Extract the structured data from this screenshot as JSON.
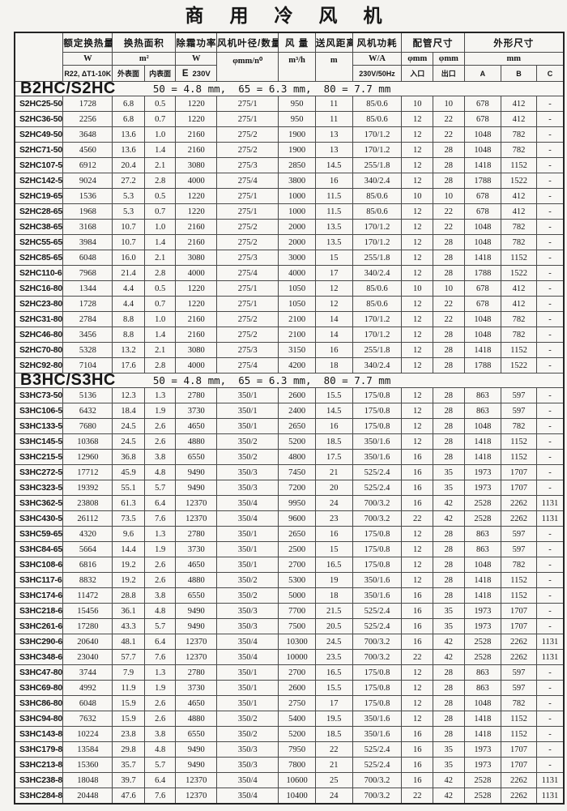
{
  "page_title": "商 用 冷 风 机",
  "table": {
    "groups": {
      "rated": "额定换热量",
      "area": "换热面积",
      "defrost": "除霜功率",
      "fan": "风机叶径/数量",
      "airflow": "风 量",
      "distance": "送风距离",
      "power": "风机功耗",
      "piping": "配管尺寸",
      "dimensions": "外形尺寸"
    },
    "units": {
      "rated": "W",
      "area": "m²",
      "defrost": "W",
      "fan": "φmm/n⁰",
      "airflow": "m³/h",
      "distance": "m",
      "power": "W/A",
      "inlet": "φmm",
      "outlet": "φmm",
      "dims": "mm"
    },
    "subheads": {
      "rated": "R22, ΔT1-10K",
      "outer": "外表面",
      "inner": "内表面",
      "defrost_e": "E",
      "defrost_v": "230V",
      "power": "230V/50Hz",
      "inlet": "入口",
      "outlet": "出口",
      "dim_a": "A",
      "dim_b": "B",
      "dim_c": "C"
    },
    "sections": [
      {
        "name": "B2HC/S2HC",
        "spec": "50 = 4.8 mm,  65 = 6.3 mm,  80 = 7.7 mm",
        "rows": [
          [
            "S2HC25-50",
            "1728",
            "6.8",
            "0.5",
            "1220",
            "275/1",
            "950",
            "11",
            "85/0.6",
            "10",
            "10",
            "678",
            "412",
            "-"
          ],
          [
            "S2HC36-50",
            "2256",
            "6.8",
            "0.7",
            "1220",
            "275/1",
            "950",
            "11",
            "85/0.6",
            "12",
            "22",
            "678",
            "412",
            "-"
          ],
          [
            "S2HC49-50",
            "3648",
            "13.6",
            "1.0",
            "2160",
            "275/2",
            "1900",
            "13",
            "170/1.2",
            "12",
            "22",
            "1048",
            "782",
            "-"
          ],
          [
            "S2HC71-50",
            "4560",
            "13.6",
            "1.4",
            "2160",
            "275/2",
            "1900",
            "13",
            "170/1.2",
            "12",
            "28",
            "1048",
            "782",
            "-"
          ],
          [
            "S2HC107-50",
            "6912",
            "20.4",
            "2.1",
            "3080",
            "275/3",
            "2850",
            "14.5",
            "255/1.8",
            "12",
            "28",
            "1418",
            "1152",
            "-"
          ],
          [
            "S2HC142-50",
            "9024",
            "27.2",
            "2.8",
            "4000",
            "275/4",
            "3800",
            "16",
            "340/2.4",
            "12",
            "28",
            "1788",
            "1522",
            "-"
          ],
          [
            "S2HC19-65",
            "1536",
            "5.3",
            "0.5",
            "1220",
            "275/1",
            "1000",
            "11.5",
            "85/0.6",
            "10",
            "10",
            "678",
            "412",
            "-"
          ],
          [
            "S2HC28-65",
            "1968",
            "5.3",
            "0.7",
            "1220",
            "275/1",
            "1000",
            "11.5",
            "85/0.6",
            "12",
            "22",
            "678",
            "412",
            "-"
          ],
          [
            "S2HC38-65",
            "3168",
            "10.7",
            "1.0",
            "2160",
            "275/2",
            "2000",
            "13.5",
            "170/1.2",
            "12",
            "22",
            "1048",
            "782",
            "-"
          ],
          [
            "S2HC55-65",
            "3984",
            "10.7",
            "1.4",
            "2160",
            "275/2",
            "2000",
            "13.5",
            "170/1.2",
            "12",
            "28",
            "1048",
            "782",
            "-"
          ],
          [
            "S2HC85-65",
            "6048",
            "16.0",
            "2.1",
            "3080",
            "275/3",
            "3000",
            "15",
            "255/1.8",
            "12",
            "28",
            "1418",
            "1152",
            "-"
          ],
          [
            "S2HC110-65",
            "7968",
            "21.4",
            "2.8",
            "4000",
            "275/4",
            "4000",
            "17",
            "340/2.4",
            "12",
            "28",
            "1788",
            "1522",
            "-"
          ],
          [
            "S2HC16-80",
            "1344",
            "4.4",
            "0.5",
            "1220",
            "275/1",
            "1050",
            "12",
            "85/0.6",
            "10",
            "10",
            "678",
            "412",
            "-"
          ],
          [
            "S2HC23-80",
            "1728",
            "4.4",
            "0.7",
            "1220",
            "275/1",
            "1050",
            "12",
            "85/0.6",
            "12",
            "22",
            "678",
            "412",
            "-"
          ],
          [
            "S2HC31-80",
            "2784",
            "8.8",
            "1.0",
            "2160",
            "275/2",
            "2100",
            "14",
            "170/1.2",
            "12",
            "22",
            "1048",
            "782",
            "-"
          ],
          [
            "S2HC46-80",
            "3456",
            "8.8",
            "1.4",
            "2160",
            "275/2",
            "2100",
            "14",
            "170/1.2",
            "12",
            "28",
            "1048",
            "782",
            "-"
          ],
          [
            "S2HC70-80",
            "5328",
            "13.2",
            "2.1",
            "3080",
            "275/3",
            "3150",
            "16",
            "255/1.8",
            "12",
            "28",
            "1418",
            "1152",
            "-"
          ],
          [
            "S2HC92-80",
            "7104",
            "17.6",
            "2.8",
            "4000",
            "275/4",
            "4200",
            "18",
            "340/2.4",
            "12",
            "28",
            "1788",
            "1522",
            "-"
          ]
        ]
      },
      {
        "name": "B3HC/S3HC",
        "spec": "50 = 4.8 mm,  65 = 6.3 mm,  80 = 7.7 mm",
        "rows": [
          [
            "S3HC73-50",
            "5136",
            "12.3",
            "1.3",
            "2780",
            "350/1",
            "2600",
            "15.5",
            "175/0.8",
            "12",
            "28",
            "863",
            "597",
            "-"
          ],
          [
            "S3HC106-50",
            "6432",
            "18.4",
            "1.9",
            "3730",
            "350/1",
            "2400",
            "14.5",
            "175/0.8",
            "12",
            "28",
            "863",
            "597",
            "-"
          ],
          [
            "S3HC133-50",
            "7680",
            "24.5",
            "2.6",
            "4650",
            "350/1",
            "2650",
            "16",
            "175/0.8",
            "12",
            "28",
            "1048",
            "782",
            "-"
          ],
          [
            "S3HC145-50",
            "10368",
            "24.5",
            "2.6",
            "4880",
            "350/2",
            "5200",
            "18.5",
            "350/1.6",
            "12",
            "28",
            "1418",
            "1152",
            "-"
          ],
          [
            "S3HC215-50",
            "12960",
            "36.8",
            "3.8",
            "6550",
            "350/2",
            "4800",
            "17.5",
            "350/1.6",
            "16",
            "28",
            "1418",
            "1152",
            "-"
          ],
          [
            "S3HC272-50",
            "17712",
            "45.9",
            "4.8",
            "9490",
            "350/3",
            "7450",
            "21",
            "525/2.4",
            "16",
            "35",
            "1973",
            "1707",
            "-"
          ],
          [
            "S3HC323-50",
            "19392",
            "55.1",
            "5.7",
            "9490",
            "350/3",
            "7200",
            "20",
            "525/2.4",
            "16",
            "35",
            "1973",
            "1707",
            "-"
          ],
          [
            "S3HC362-50",
            "23808",
            "61.3",
            "6.4",
            "12370",
            "350/4",
            "9950",
            "24",
            "700/3.2",
            "16",
            "42",
            "2528",
            "2262",
            "1131"
          ],
          [
            "S3HC430-50",
            "26112",
            "73.5",
            "7.6",
            "12370",
            "350/4",
            "9600",
            "23",
            "700/3.2",
            "22",
            "42",
            "2528",
            "2262",
            "1131"
          ],
          [
            "S3HC59-65",
            "4320",
            "9.6",
            "1.3",
            "2780",
            "350/1",
            "2650",
            "16",
            "175/0.8",
            "12",
            "28",
            "863",
            "597",
            "-"
          ],
          [
            "S3HC84-65",
            "5664",
            "14.4",
            "1.9",
            "3730",
            "350/1",
            "2500",
            "15",
            "175/0.8",
            "12",
            "28",
            "863",
            "597",
            "-"
          ],
          [
            "S3HC108-65",
            "6816",
            "19.2",
            "2.6",
            "4650",
            "350/1",
            "2700",
            "16.5",
            "175/0.8",
            "12",
            "28",
            "1048",
            "782",
            "-"
          ],
          [
            "S3HC117-65",
            "8832",
            "19.2",
            "2.6",
            "4880",
            "350/2",
            "5300",
            "19",
            "350/1.6",
            "12",
            "28",
            "1418",
            "1152",
            "-"
          ],
          [
            "S3HC174-65",
            "11472",
            "28.8",
            "3.8",
            "6550",
            "350/2",
            "5000",
            "18",
            "350/1.6",
            "16",
            "28",
            "1418",
            "1152",
            "-"
          ],
          [
            "S3HC218-65",
            "15456",
            "36.1",
            "4.8",
            "9490",
            "350/3",
            "7700",
            "21.5",
            "525/2.4",
            "16",
            "35",
            "1973",
            "1707",
            "-"
          ],
          [
            "S3HC261-65",
            "17280",
            "43.3",
            "5.7",
            "9490",
            "350/3",
            "7500",
            "20.5",
            "525/2.4",
            "16",
            "35",
            "1973",
            "1707",
            "-"
          ],
          [
            "S3HC290-65",
            "20640",
            "48.1",
            "6.4",
            "12370",
            "350/4",
            "10300",
            "24.5",
            "700/3.2",
            "16",
            "42",
            "2528",
            "2262",
            "1131"
          ],
          [
            "S3HC348-65",
            "23040",
            "57.7",
            "7.6",
            "12370",
            "350/4",
            "10000",
            "23.5",
            "700/3.2",
            "22",
            "42",
            "2528",
            "2262",
            "1131"
          ],
          [
            "S3HC47-80",
            "3744",
            "7.9",
            "1.3",
            "2780",
            "350/1",
            "2700",
            "16.5",
            "175/0.8",
            "12",
            "28",
            "863",
            "597",
            "-"
          ],
          [
            "S3HC69-80",
            "4992",
            "11.9",
            "1.9",
            "3730",
            "350/1",
            "2600",
            "15.5",
            "175/0.8",
            "12",
            "28",
            "863",
            "597",
            "-"
          ],
          [
            "S3HC86-80",
            "6048",
            "15.9",
            "2.6",
            "4650",
            "350/1",
            "2750",
            "17",
            "175/0.8",
            "12",
            "28",
            "1048",
            "782",
            "-"
          ],
          [
            "S3HC94-80",
            "7632",
            "15.9",
            "2.6",
            "4880",
            "350/2",
            "5400",
            "19.5",
            "350/1.6",
            "12",
            "28",
            "1418",
            "1152",
            "-"
          ],
          [
            "S3HC143-80",
            "10224",
            "23.8",
            "3.8",
            "6550",
            "350/2",
            "5200",
            "18.5",
            "350/1.6",
            "16",
            "28",
            "1418",
            "1152",
            "-"
          ],
          [
            "S3HC179-80",
            "13584",
            "29.8",
            "4.8",
            "9490",
            "350/3",
            "7950",
            "22",
            "525/2.4",
            "16",
            "35",
            "1973",
            "1707",
            "-"
          ],
          [
            "S3HC213-80",
            "15360",
            "35.7",
            "5.7",
            "9490",
            "350/3",
            "7800",
            "21",
            "525/2.4",
            "16",
            "35",
            "1973",
            "1707",
            "-"
          ],
          [
            "S3HC238-80",
            "18048",
            "39.7",
            "6.4",
            "12370",
            "350/4",
            "10600",
            "25",
            "700/3.2",
            "16",
            "42",
            "2528",
            "2262",
            "1131"
          ],
          [
            "S3HC284-80",
            "20448",
            "47.6",
            "7.6",
            "12370",
            "350/4",
            "10400",
            "24",
            "700/3.2",
            "22",
            "42",
            "2528",
            "2262",
            "1131"
          ]
        ]
      }
    ]
  }
}
